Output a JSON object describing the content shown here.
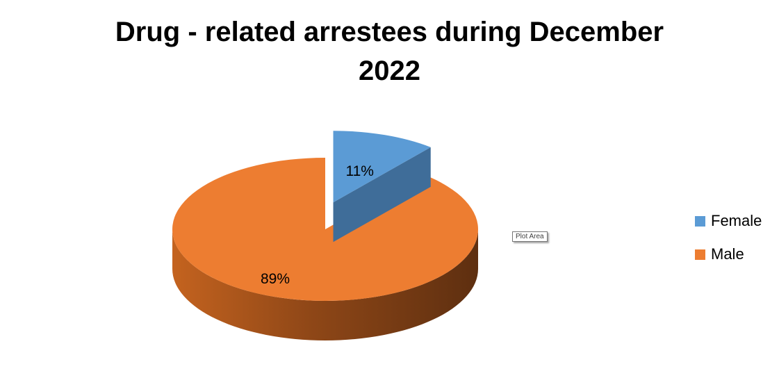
{
  "chart_data": {
    "type": "pie",
    "title_lines": [
      "Drug - related arrestees during December",
      "2022"
    ],
    "categories": [
      "Female",
      "Male"
    ],
    "values": [
      11,
      89
    ],
    "labels": [
      "11%",
      "89%"
    ],
    "colors": [
      "#5b9bd5",
      "#ed7d31"
    ],
    "side_colors": [
      "#3f6d99",
      "#ad5a22"
    ],
    "legend_position": "right",
    "exploded": "Female"
  },
  "tooltip": "Plot Area"
}
